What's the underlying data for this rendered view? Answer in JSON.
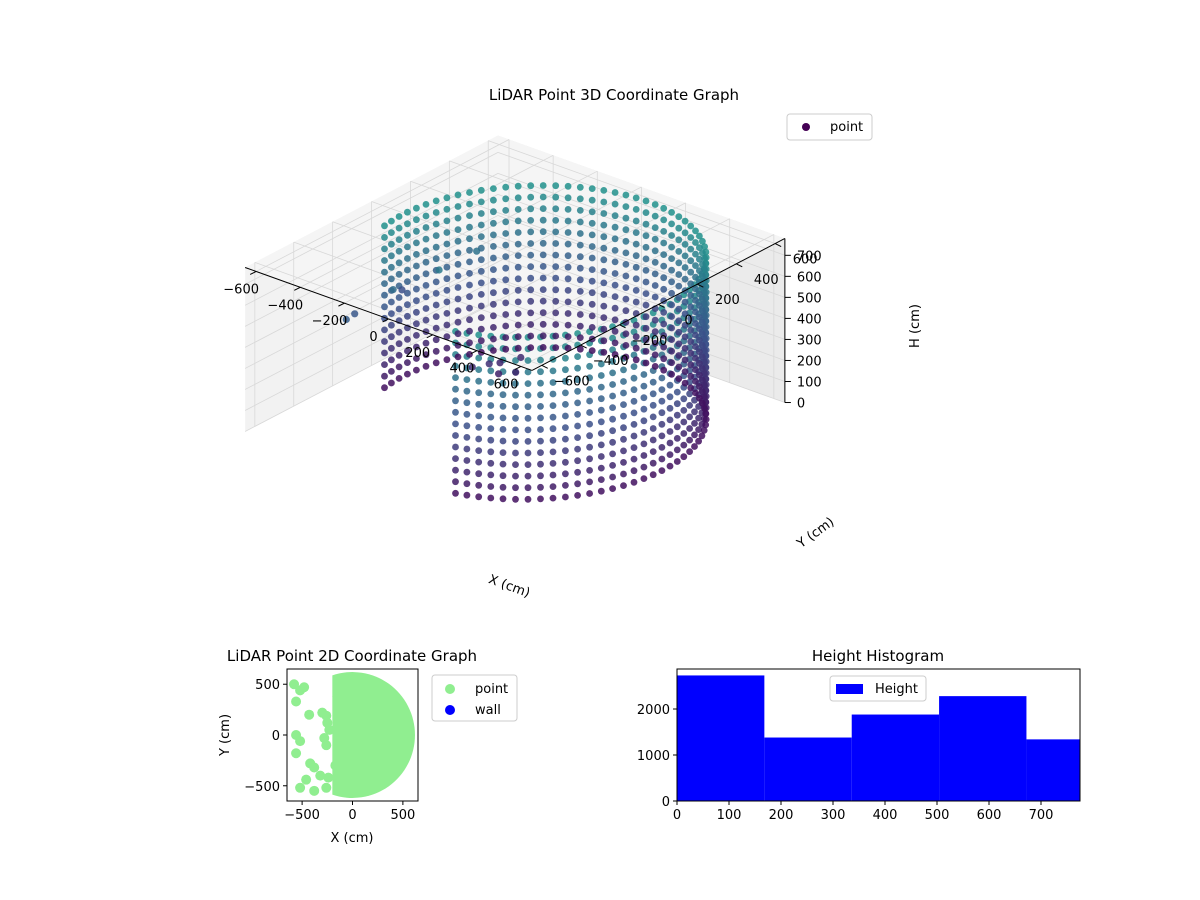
{
  "chart_data": [
    {
      "type": "scatter3d",
      "title": "LiDAR Point 3D Coordinate Graph",
      "xlabel": "X (cm)",
      "ylabel": "Y (cm)",
      "zlabel": "H (cm)",
      "xlim": [
        -650,
        650
      ],
      "ylim": [
        -650,
        650
      ],
      "zlim": [
        0,
        780
      ],
      "z_inverted": true,
      "x_ticks": [
        "−600",
        "−400",
        "−200",
        "0",
        "200",
        "400",
        "600"
      ],
      "y_ticks": [
        "−600",
        "−400",
        "−200",
        "0",
        "200",
        "400",
        "600"
      ],
      "z_ticks": [
        "0",
        "100",
        "200",
        "300",
        "400",
        "500",
        "600",
        "700"
      ],
      "x_tick_values": [
        -600,
        -400,
        -200,
        0,
        200,
        400,
        600
      ],
      "y_tick_values": [
        -600,
        -400,
        -200,
        0,
        200,
        400,
        600
      ],
      "z_tick_values": [
        0,
        100,
        200,
        300,
        400,
        500,
        600,
        700
      ],
      "legend": {
        "entries": [
          "point"
        ],
        "placement": "top-right"
      },
      "colormap": "viridis",
      "marker_color": "#440154",
      "grid": true,
      "ring": {
        "center_x": 80,
        "center_y": 0,
        "radius": 590,
        "angle_start_deg": -75,
        "angle_end_deg": 190,
        "h_min": 0,
        "h_max": 770
      },
      "points": [
        {
          "x": -200,
          "y": 150,
          "h": 110
        },
        {
          "x": -180,
          "y": 120,
          "h": 80
        },
        {
          "x": -150,
          "y": 200,
          "h": 130
        },
        {
          "x": -170,
          "y": 60,
          "h": 160
        },
        {
          "x": -120,
          "y": 140,
          "h": 100
        },
        {
          "x": -220,
          "y": 30,
          "h": 140
        },
        {
          "x": -600,
          "y": 100,
          "h": 330
        },
        {
          "x": -550,
          "y": -200,
          "h": 380
        },
        {
          "x": -500,
          "y": -300,
          "h": 420
        },
        {
          "x": -420,
          "y": -150,
          "h": 520
        },
        {
          "x": -350,
          "y": 200,
          "h": 560
        },
        {
          "x": -300,
          "y": -50,
          "h": 610
        }
      ]
    },
    {
      "type": "scatter",
      "title": "LiDAR Point 2D Coordinate Graph",
      "xlabel": "X (cm)",
      "ylabel": "Y (cm)",
      "xlim": [
        -650,
        650
      ],
      "ylim": [
        -650,
        650
      ],
      "x_ticks": [
        "−500",
        "0",
        "500"
      ],
      "y_ticks": [
        "−500",
        "0",
        "500"
      ],
      "x_tick_values": [
        -500,
        0,
        500
      ],
      "y_tick_values": [
        -500,
        0,
        500
      ],
      "legend": {
        "entries": [
          "point",
          "wall"
        ],
        "placement": "outside-right"
      },
      "series": [
        {
          "name": "point",
          "color": "#90ee90",
          "region": {
            "type": "disc",
            "center_x": 0,
            "center_y": 0,
            "radius": 620,
            "x_min": -200
          },
          "points": [
            [
              -580,
              500
            ],
            [
              -520,
              440
            ],
            [
              -560,
              330
            ],
            [
              -480,
              470
            ],
            [
              -430,
              200
            ],
            [
              -300,
              220
            ],
            [
              -260,
              190
            ],
            [
              -560,
              0
            ],
            [
              -520,
              -60
            ],
            [
              -560,
              -180
            ],
            [
              -420,
              -280
            ],
            [
              -380,
              -320
            ],
            [
              -320,
              -400
            ],
            [
              -460,
              -440
            ],
            [
              -520,
              -520
            ],
            [
              -380,
              -550
            ],
            [
              -260,
              -520
            ],
            [
              -240,
              -420
            ],
            [
              -260,
              -100
            ],
            [
              -230,
              50
            ],
            [
              -280,
              -30
            ],
            [
              -250,
              120
            ],
            [
              -150,
              380
            ],
            [
              -170,
              -300
            ]
          ]
        },
        {
          "name": "wall",
          "color": "#0000ff",
          "points": []
        }
      ]
    },
    {
      "type": "bar",
      "title": "Height Histogram",
      "xlabel": "",
      "ylabel": "",
      "xlim": [
        0,
        775
      ],
      "ylim": [
        0,
        2870
      ],
      "x_ticks": [
        "0",
        "100",
        "200",
        "300",
        "400",
        "500",
        "600",
        "700"
      ],
      "y_ticks": [
        "0",
        "1000",
        "2000"
      ],
      "x_tick_values": [
        0,
        100,
        200,
        300,
        400,
        500,
        600,
        700
      ],
      "y_tick_values": [
        0,
        1000,
        2000
      ],
      "legend": {
        "entries": [
          "Height"
        ],
        "placement": "upper-center"
      },
      "series": [
        {
          "name": "Height",
          "color": "#0000ff",
          "bins": [
            0,
            168,
            336,
            504,
            672,
            775
          ],
          "values": [
            2730,
            1380,
            1880,
            2280,
            1340
          ]
        }
      ]
    }
  ]
}
